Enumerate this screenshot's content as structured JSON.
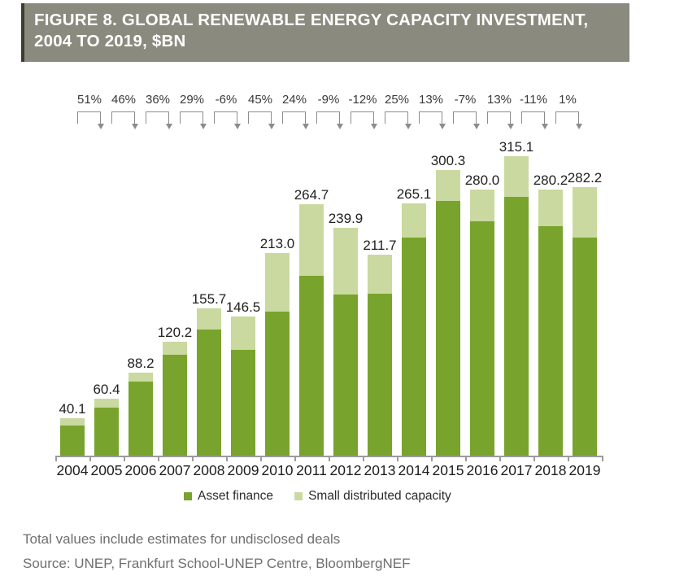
{
  "header": {
    "title": "FIGURE 8. GLOBAL RENEWABLE ENERGY CAPACITY INVESTMENT, 2004 TO 2019, $BN",
    "bg_color": "#8A8A7E",
    "accent_color": "#3D3D33"
  },
  "chart_data": {
    "type": "bar",
    "stacked": true,
    "title": "FIGURE 8. GLOBAL RENEWABLE ENERGY CAPACITY INVESTMENT, 2004 TO 2019, $BN",
    "xlabel": "",
    "ylabel": "",
    "gridlines": false,
    "legend_position": "bottom",
    "categories": [
      "2004",
      "2005",
      "2006",
      "2007",
      "2008",
      "2009",
      "2010",
      "2011",
      "2012",
      "2013",
      "2014",
      "2015",
      "2016",
      "2017",
      "2018",
      "2019"
    ],
    "series": [
      {
        "name": "Asset finance",
        "color": "#78A32C",
        "values": [
          32.4,
          51.1,
          78.3,
          106.7,
          133.2,
          111.5,
          151.7,
          189.4,
          169.8,
          170.6,
          229.6,
          267.9,
          246.8,
          272.4,
          241.7,
          229.8
        ]
      },
      {
        "name": "Small distributed capacity",
        "color": "#C9D9A0",
        "values": [
          7.7,
          9.3,
          9.9,
          13.5,
          22.5,
          35.0,
          61.3,
          75.3,
          70.1,
          41.1,
          35.5,
          32.4,
          33.2,
          42.7,
          38.5,
          52.4
        ]
      }
    ],
    "totals": [
      "40.1",
      "60.4",
      "88.2",
      "120.2",
      "155.7",
      "146.5",
      "213.0",
      "264.7",
      "239.9",
      "211.7",
      "265.1",
      "300.3",
      "280.0",
      "315.1",
      "280.2",
      "282.2"
    ],
    "growth_labels": [
      "51%",
      "46%",
      "36%",
      "29%",
      "-6%",
      "45%",
      "24%",
      "-9%",
      "-12%",
      "25%",
      "13%",
      "-7%",
      "13%",
      "-11%",
      "1%"
    ],
    "annotation_color": "#8C8C8C",
    "axis_color": "#9B9B9B"
  },
  "legend": {
    "items": [
      {
        "label": "Asset finance",
        "color": "#78A32C"
      },
      {
        "label": "Small distributed capacity",
        "color": "#C9D9A0"
      }
    ]
  },
  "footer": {
    "note": "Total values include estimates for undisclosed deals",
    "source": "Source: UNEP, Frankfurt School-UNEP Centre, BloombergNEF"
  }
}
